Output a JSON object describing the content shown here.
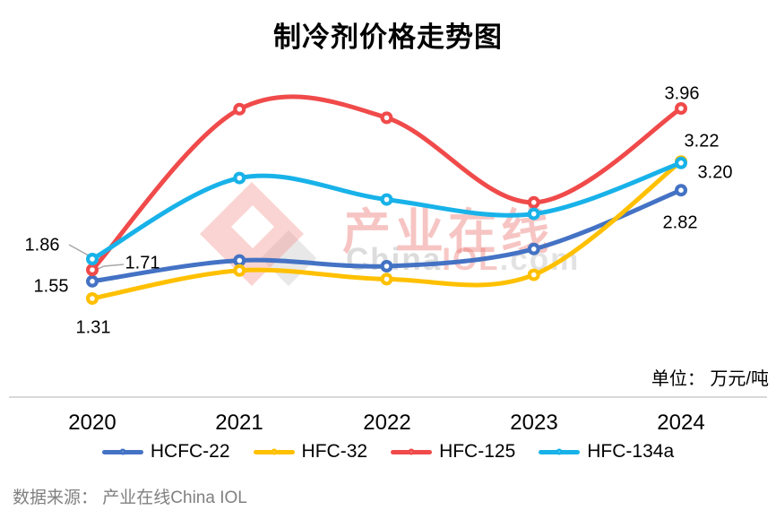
{
  "title": "制冷剂价格走势图",
  "unit_note": "单位： 万元/吨",
  "source_note": "数据来源： 产业在线China IOL",
  "watermark": {
    "brand_cn": "产业在线",
    "brand_en_1": "China",
    "brand_en_2": "IOL",
    "brand_en_3": ".com"
  },
  "colors": {
    "axis_line": "#d9d9d9",
    "leader_line": "#a6a6a6",
    "label_text": "#000000",
    "source_text": "#808080"
  },
  "chart_data": {
    "type": "line",
    "title": "制冷剂价格走势图",
    "unit": "万元/吨",
    "categories": [
      "2020",
      "2021",
      "2022",
      "2023",
      "2024"
    ],
    "series": [
      {
        "name": "HCFC-22",
        "color": "#4472C4",
        "values": [
          1.55,
          1.84,
          1.76,
          2.0,
          2.82
        ]
      },
      {
        "name": "HFC-32",
        "color": "#FFC000",
        "values": [
          1.31,
          1.7,
          1.58,
          1.64,
          3.22
        ]
      },
      {
        "name": "HFC-125",
        "color": "#F04A4A",
        "values": [
          1.71,
          3.95,
          3.83,
          2.65,
          3.96
        ]
      },
      {
        "name": "HFC-134a",
        "color": "#18B2E9",
        "values": [
          1.86,
          2.99,
          2.69,
          2.49,
          3.2
        ]
      }
    ],
    "point_labels": [
      {
        "text": "1.86",
        "series": "HFC-134a",
        "category": "2020"
      },
      {
        "text": "1.71",
        "series": "HFC-125",
        "category": "2020"
      },
      {
        "text": "1.55",
        "series": "HCFC-22",
        "category": "2020"
      },
      {
        "text": "1.31",
        "series": "HFC-32",
        "category": "2020"
      },
      {
        "text": "3.96",
        "series": "HFC-125",
        "category": "2024"
      },
      {
        "text": "3.22",
        "series": "HFC-32",
        "category": "2024"
      },
      {
        "text": "3.20",
        "series": "HFC-134a",
        "category": "2024"
      },
      {
        "text": "2.82",
        "series": "HCFC-22",
        "category": "2024"
      }
    ],
    "smooth": true,
    "grid": false,
    "y_axis_visible": false,
    "ylim": [
      1.1,
      4.2
    ],
    "legend_position": "bottom"
  }
}
